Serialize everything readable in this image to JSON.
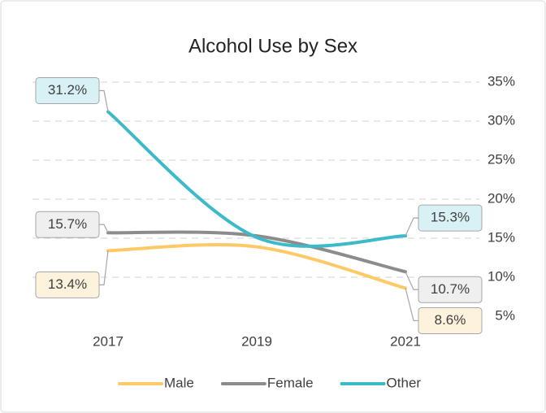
{
  "chart_data": {
    "type": "line",
    "title": "Alcohol Use by Sex",
    "categories": [
      "2017",
      "2019",
      "2021"
    ],
    "series": [
      {
        "name": "Male",
        "color": "#ffc966",
        "values": [
          13.4,
          13.9,
          8.6
        ],
        "value_labels": [
          "13.4%",
          null,
          "8.6%"
        ]
      },
      {
        "name": "Female",
        "color": "#8c8c8c",
        "values": [
          15.7,
          15.3,
          10.7
        ],
        "value_labels": [
          "15.7%",
          null,
          "10.7%"
        ]
      },
      {
        "name": "Other",
        "color": "#3cbac8",
        "values": [
          31.2,
          15.1,
          15.3
        ],
        "value_labels": [
          "31.2%",
          null,
          "15.3%"
        ]
      }
    ],
    "ylim": [
      5,
      35
    ],
    "yticks": [
      {
        "value": 5,
        "label": "5%"
      },
      {
        "value": 10,
        "label": "10%"
      },
      {
        "value": 15,
        "label": "15%"
      },
      {
        "value": 20,
        "label": "20%"
      },
      {
        "value": 25,
        "label": "25%"
      },
      {
        "value": 30,
        "label": "30%"
      },
      {
        "value": 35,
        "label": "35%"
      }
    ],
    "grid": true,
    "legend": "bottom"
  }
}
